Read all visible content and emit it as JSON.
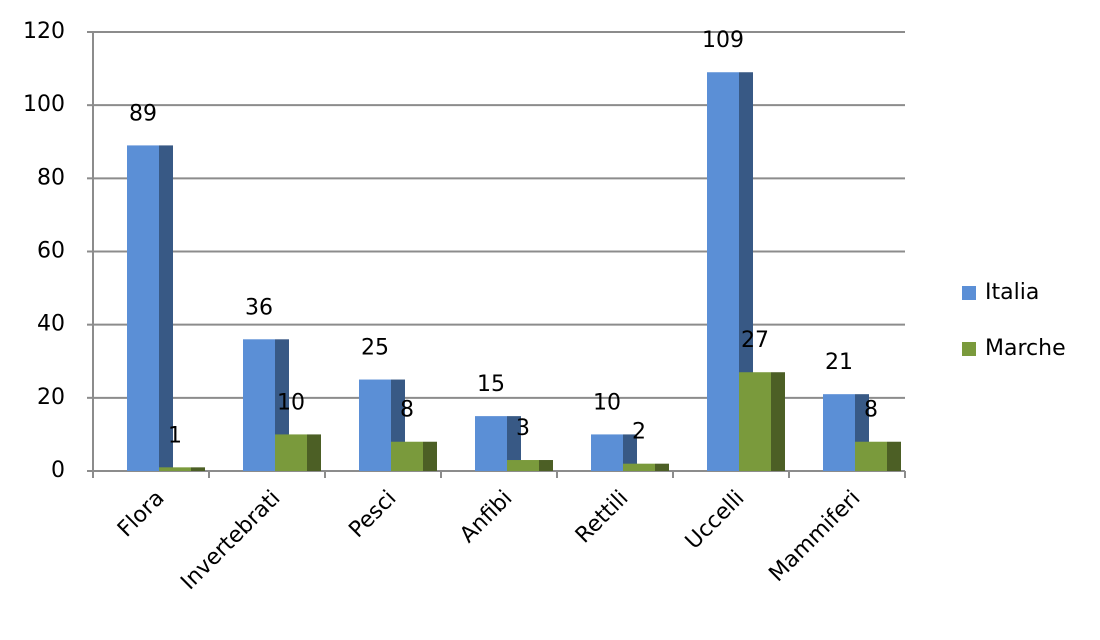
{
  "chart_data": {
    "type": "bar",
    "categories": [
      "Flora",
      "Invertebrati",
      "Pesci",
      "Anfibi",
      "Rettili",
      "Uccelli",
      "Mammiferi"
    ],
    "series": [
      {
        "name": "Italia",
        "color": "#5b8fd6",
        "values": [
          89,
          36,
          25,
          15,
          10,
          109,
          21
        ]
      },
      {
        "name": "Marche",
        "color": "#7a9a3c",
        "values": [
          1,
          10,
          8,
          3,
          2,
          27,
          8
        ]
      }
    ],
    "ylim": [
      0,
      120
    ],
    "yticks": [
      0,
      20,
      40,
      60,
      80,
      100,
      120
    ],
    "grid": true,
    "legend": "right"
  }
}
